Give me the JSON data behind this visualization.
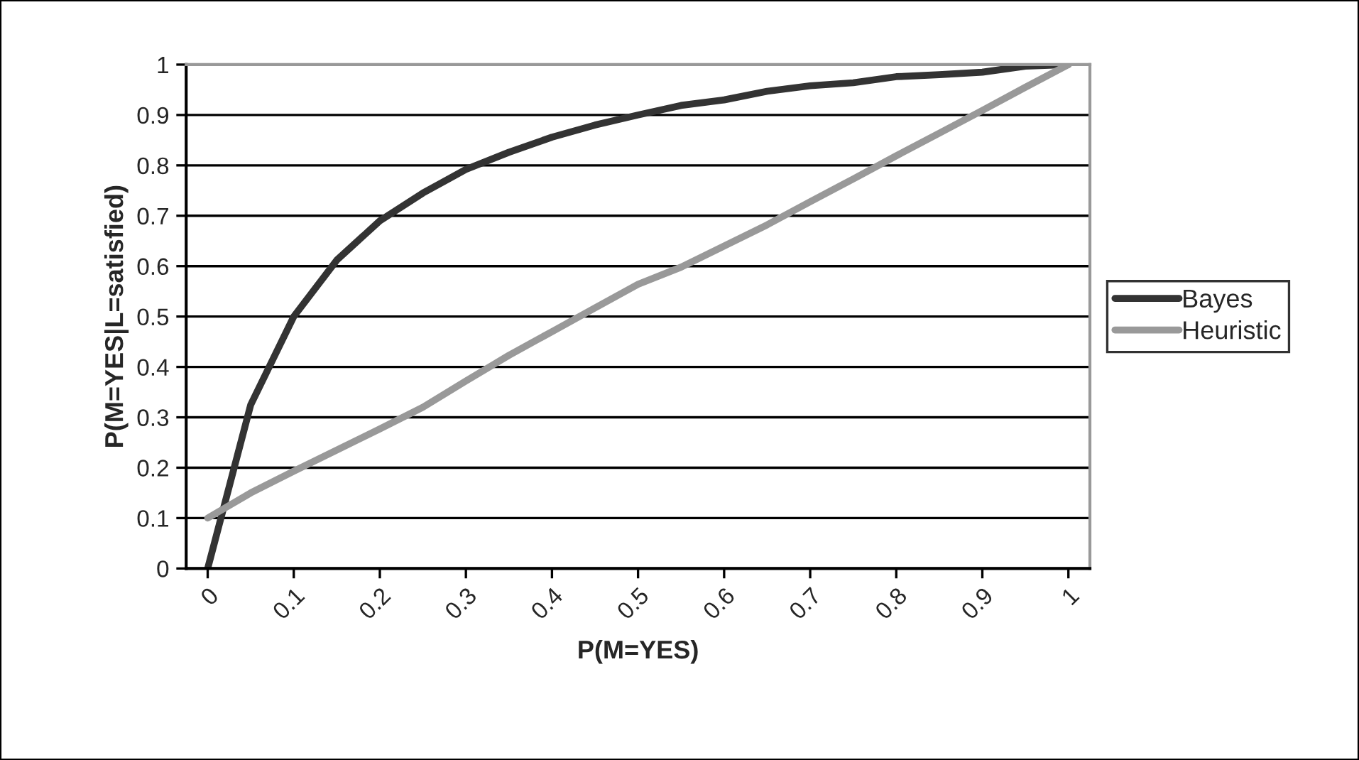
{
  "chart_data": {
    "type": "line",
    "xlabel": "P(M=YES)",
    "ylabel": "P(M=YES|L=satisfied)",
    "x": [
      0,
      0.05,
      0.1,
      0.15,
      0.2,
      0.25,
      0.3,
      0.35,
      0.4,
      0.45,
      0.5,
      0.55,
      0.6,
      0.65,
      0.7,
      0.75,
      0.8,
      0.85,
      0.9,
      0.95,
      1
    ],
    "series": [
      {
        "name": "Bayes",
        "color": "#333333",
        "values": [
          0,
          0.325,
          0.5,
          0.612,
          0.69,
          0.745,
          0.792,
          0.826,
          0.856,
          0.88,
          0.9,
          0.919,
          0.93,
          0.947,
          0.958,
          0.964,
          0.976,
          0.98,
          0.985,
          0.997,
          1
        ]
      },
      {
        "name": "Heuristic",
        "color": "#999999",
        "values": [
          0.1,
          0.15,
          0.193,
          0.235,
          0.277,
          0.32,
          0.372,
          0.423,
          0.47,
          0.517,
          0.564,
          0.598,
          0.64,
          0.682,
          0.728,
          0.773,
          0.819,
          0.864,
          0.909,
          0.955,
          1
        ]
      }
    ],
    "xlim": [
      -0.025,
      1.025
    ],
    "xticks": [
      0,
      0.1,
      0.2,
      0.3,
      0.4,
      0.5,
      0.6,
      0.7,
      0.8,
      0.9,
      1
    ],
    "ylim": [
      0,
      1
    ],
    "yticks": [
      0,
      0.1,
      0.2,
      0.3,
      0.4,
      0.5,
      0.6,
      0.7,
      0.8,
      0.9,
      1
    ],
    "grid": "y",
    "legend": "right",
    "marker": "none",
    "line_style": "solid"
  }
}
